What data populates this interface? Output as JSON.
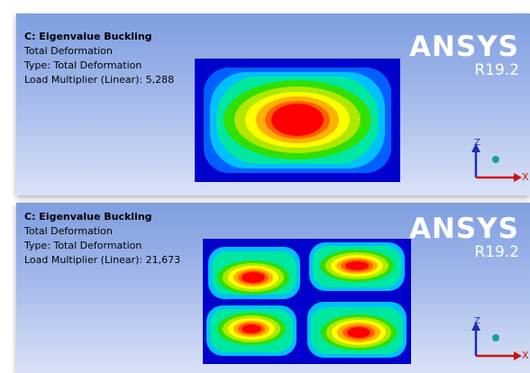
{
  "panels": [
    {
      "title": "C: Eigenvalue Buckling",
      "result": "Total Deformation",
      "type_line": "Type: Total Deformation",
      "load_line": "Load Multiplier (Linear): 5,288"
    },
    {
      "title": "C: Eigenvalue Buckling",
      "result": "Total Deformation",
      "type_line": "Type: Total Deformation",
      "load_line": "Load Multiplier (Linear): 21,673"
    }
  ],
  "logo": {
    "word": "ANSYS",
    "version": "R19.2"
  },
  "triad": {
    "z_label": "Z",
    "x_label": "X"
  },
  "colors": {
    "viewport_top": "#7e9ee0",
    "viewport_bottom": "#d9e2f7",
    "contour_scale": [
      "#0000cc",
      "#0060ff",
      "#00c0ff",
      "#00e8a0",
      "#30e000",
      "#b0e800",
      "#ffff00",
      "#ffb000",
      "#ff6000",
      "#ff0000"
    ]
  },
  "icons": {
    "triad": "axis-triad-icon",
    "origin": "origin-sphere-icon"
  }
}
